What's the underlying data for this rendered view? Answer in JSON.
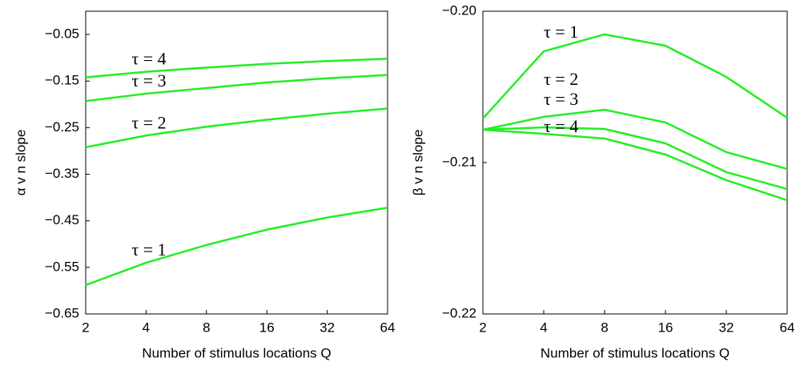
{
  "chart_data": [
    {
      "type": "line",
      "x_label": "Number of stimulus locations Q",
      "y_label": "α v n slope",
      "x": [
        2,
        4,
        8,
        16,
        32,
        64
      ],
      "xlim": [
        2,
        64
      ],
      "xticks": [
        2,
        4,
        8,
        16,
        32,
        64
      ],
      "x_log_base": 2,
      "ylim": [
        -0.65,
        0
      ],
      "yticks": [
        {
          "value": -0.65,
          "label": "−0.65"
        },
        {
          "value": -0.55,
          "label": "−0.55"
        },
        {
          "value": -0.45,
          "label": "−0.45"
        },
        {
          "value": -0.35,
          "label": "−0.35"
        },
        {
          "value": -0.25,
          "label": "−0.25"
        },
        {
          "value": -0.15,
          "label": "−0.15"
        },
        {
          "value": -0.05,
          "label": "−0.05"
        }
      ],
      "series": [
        {
          "name": "τ = 4",
          "color": "#22ee22",
          "values": [
            -0.142,
            -0.13,
            -0.121,
            -0.113,
            -0.107,
            -0.102
          ]
        },
        {
          "name": "τ = 3",
          "color": "#22ee22",
          "values": [
            -0.193,
            -0.177,
            -0.165,
            -0.153,
            -0.144,
            -0.137
          ]
        },
        {
          "name": "τ = 2",
          "color": "#22ee22",
          "values": [
            -0.292,
            -0.267,
            -0.248,
            -0.233,
            -0.22,
            -0.209
          ]
        },
        {
          "name": "τ = 1",
          "color": "#22ee22",
          "values": [
            -0.588,
            -0.54,
            -0.502,
            -0.469,
            -0.443,
            -0.422
          ]
        }
      ]
    },
    {
      "type": "line",
      "x_label": "Number of stimulus locations Q",
      "y_label": "β v n slope",
      "x": [
        2,
        4,
        8,
        16,
        32,
        64
      ],
      "xlim": [
        2,
        64
      ],
      "xticks": [
        2,
        4,
        8,
        16,
        32,
        64
      ],
      "x_log_base": 2,
      "ylim": [
        -0.22,
        -0.2
      ],
      "yticks": [
        {
          "value": -0.22,
          "label": "−0.22"
        },
        {
          "value": -0.21,
          "label": "−0.21"
        },
        {
          "value": -0.2,
          "label": "−0.20"
        }
      ],
      "series": [
        {
          "name": "τ = 1",
          "color": "#22ee22",
          "values": [
            -0.20709,
            -0.20265,
            -0.20153,
            -0.20228,
            -0.20434,
            -0.20704
          ]
        },
        {
          "name": "τ = 2",
          "color": "#22ee22",
          "values": [
            -0.20783,
            -0.20698,
            -0.20651,
            -0.20735,
            -0.20931,
            -0.21042
          ]
        },
        {
          "name": "τ = 3",
          "color": "#22ee22",
          "values": [
            -0.20783,
            -0.20767,
            -0.20778,
            -0.20873,
            -0.21063,
            -0.21175
          ]
        },
        {
          "name": "τ = 4",
          "color": "#22ee22",
          "values": [
            -0.20783,
            -0.2081,
            -0.20841,
            -0.20947,
            -0.21116,
            -0.21249
          ]
        }
      ]
    }
  ]
}
